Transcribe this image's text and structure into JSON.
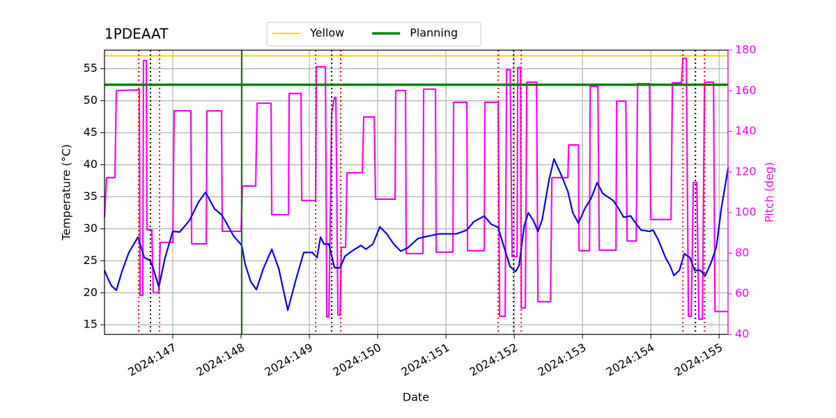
{
  "chart_data": {
    "type": "line",
    "title": "1PDEAAT",
    "xlabel": "Date",
    "ylabel": "Temperature (°C)",
    "y2label": "Pitch (deg)",
    "y2color": "#ff00ff",
    "grid": true,
    "legend": "upper center",
    "xlim": [
      146.0,
      155.13
    ],
    "xticks": [
      {
        "value": 147,
        "label": "2024:147"
      },
      {
        "value": 148,
        "label": "2024:148"
      },
      {
        "value": 149,
        "label": "2024:149"
      },
      {
        "value": 150,
        "label": "2024:150"
      },
      {
        "value": 151,
        "label": "2024:151"
      },
      {
        "value": 152,
        "label": "2024:152"
      },
      {
        "value": 153,
        "label": "2024:153"
      },
      {
        "value": 154,
        "label": "2024:154"
      },
      {
        "value": 155,
        "label": "2024:155"
      }
    ],
    "ylim": [
      13.5,
      57.9
    ],
    "yticks": [
      15,
      20,
      25,
      30,
      35,
      40,
      45,
      50,
      55
    ],
    "y2lim": [
      40,
      180
    ],
    "y2ticks": [
      40,
      60,
      80,
      100,
      120,
      140,
      160,
      180
    ],
    "hlines": [
      {
        "name": "Yellow",
        "color": "#ffd700",
        "width": 2,
        "value": 57.0
      },
      {
        "name": "Planning",
        "color": "#008000",
        "width": 3.5,
        "value": 52.5
      }
    ],
    "vlines": [
      {
        "color": "#008000",
        "dash": "none",
        "values": [
          148.01
        ]
      },
      {
        "color": "#ff0000",
        "dash": "2,4",
        "values": [
          146.5,
          146.806,
          149.092,
          149.459,
          151.765,
          152.102,
          154.469,
          154.786
        ]
      },
      {
        "color": "#000000",
        "dash": "2,4",
        "values": [
          146.673,
          149.327,
          151.99,
          154.653
        ]
      }
    ],
    "series": [
      {
        "color": "#ff00ff",
        "axis": "y2",
        "x": [
          146.0,
          146.031,
          146.153,
          146.173,
          146.51,
          146.52,
          146.561,
          146.571,
          146.612,
          146.622,
          146.694,
          146.714,
          146.796,
          146.816,
          147.0,
          147.02,
          147.265,
          147.276,
          147.49,
          147.5,
          147.714,
          147.724,
          148.0,
          148.02,
          148.214,
          148.235,
          148.439,
          148.449,
          148.694,
          148.704,
          148.878,
          148.888,
          149.092,
          149.102,
          149.235,
          149.255,
          149.286,
          149.327,
          149.367,
          149.388,
          149.418,
          149.449,
          149.469,
          149.531,
          149.551,
          149.776,
          149.796,
          149.949,
          149.969,
          150.255,
          150.265,
          150.408,
          150.418,
          150.663,
          150.673,
          150.847,
          150.857,
          151.102,
          151.112,
          151.306,
          151.316,
          151.561,
          151.571,
          151.765,
          151.786,
          151.867,
          151.888,
          151.939,
          151.969,
          152.041,
          152.051,
          152.092,
          152.102,
          152.163,
          152.184,
          152.327,
          152.347,
          152.531,
          152.551,
          152.786,
          152.796,
          152.939,
          152.949,
          153.102,
          153.112,
          153.224,
          153.245,
          153.49,
          153.5,
          153.633,
          153.653,
          153.786,
          153.806,
          153.98,
          154.0,
          154.296,
          154.316,
          154.449,
          154.469,
          154.52,
          154.551,
          154.592,
          154.622,
          154.673,
          154.704,
          154.755,
          154.786,
          154.918,
          154.939,
          155.133
        ],
        "values": [
          97.6,
          117.2,
          117.2,
          160.1,
          160.4,
          59.2,
          59.2,
          174.9,
          174.9,
          91.5,
          91.5,
          60.6,
          60.6,
          85.3,
          85.3,
          150.1,
          150.1,
          84.6,
          84.6,
          150.1,
          150.1,
          90.8,
          90.8,
          113.1,
          113.1,
          153.9,
          153.9,
          99.0,
          99.0,
          158.7,
          158.7,
          105.9,
          105.9,
          171.8,
          171.8,
          48.6,
          48.6,
          149.1,
          156.7,
          156.7,
          49.6,
          49.6,
          82.9,
          82.9,
          119.6,
          119.6,
          147.1,
          147.1,
          106.6,
          106.6,
          160.1,
          160.1,
          79.8,
          79.8,
          160.8,
          160.8,
          80.5,
          80.5,
          154.3,
          154.3,
          81.2,
          81.2,
          154.3,
          154.3,
          48.9,
          48.9,
          170.4,
          170.4,
          78.4,
          78.4,
          171.4,
          171.4,
          53.0,
          53.0,
          164.2,
          164.2,
          56.1,
          56.1,
          117.2,
          117.2,
          133.3,
          133.3,
          81.2,
          81.2,
          162.1,
          162.1,
          81.5,
          81.5,
          154.9,
          154.9,
          86.0,
          86.0,
          163.5,
          163.5,
          96.6,
          96.6,
          163.9,
          163.9,
          175.9,
          175.9,
          48.9,
          48.9,
          114.8,
          114.8,
          47.5,
          47.5,
          164.2,
          164.2,
          51.3,
          51.3
        ]
      },
      {
        "color": "#0000ee",
        "axis": "y",
        "x": [
          146.0,
          146.051,
          146.102,
          146.173,
          146.255,
          146.357,
          146.49,
          146.582,
          146.663,
          146.714,
          146.796,
          146.888,
          147.0,
          147.102,
          147.245,
          147.378,
          147.48,
          147.612,
          147.714,
          147.786,
          147.888,
          148.01,
          148.061,
          148.143,
          148.224,
          148.327,
          148.449,
          148.551,
          148.684,
          148.806,
          148.918,
          149.041,
          149.112,
          149.163,
          149.214,
          149.286,
          149.367,
          149.449,
          149.52,
          149.622,
          149.755,
          149.827,
          149.929,
          150.031,
          150.133,
          150.235,
          150.337,
          150.439,
          150.592,
          150.898,
          151.153,
          151.306,
          151.408,
          151.561,
          151.663,
          151.765,
          151.837,
          151.939,
          152.02,
          152.071,
          152.143,
          152.204,
          152.276,
          152.347,
          152.408,
          152.51,
          152.582,
          152.684,
          152.786,
          152.857,
          152.939,
          153.041,
          153.122,
          153.214,
          153.296,
          153.449,
          153.52,
          153.602,
          153.704,
          153.776,
          153.857,
          153.98,
          154.031,
          154.112,
          154.214,
          154.286,
          154.337,
          154.418,
          154.49,
          154.571,
          154.643,
          154.724,
          154.796,
          154.878,
          154.959,
          155.031,
          155.133
        ],
        "values": [
          23.5,
          22.2,
          21.1,
          20.4,
          23.3,
          26.3,
          28.7,
          25.5,
          25.1,
          23.8,
          20.9,
          25.5,
          29.6,
          29.5,
          31.3,
          34.2,
          35.7,
          33.1,
          32.2,
          30.9,
          28.9,
          27.4,
          24.4,
          21.7,
          20.5,
          23.8,
          26.8,
          23.8,
          17.3,
          22.2,
          26.3,
          26.3,
          25.5,
          28.7,
          27.6,
          27.6,
          23.9,
          23.9,
          25.7,
          26.5,
          27.4,
          26.8,
          27.6,
          30.3,
          29.2,
          27.6,
          26.5,
          27.0,
          28.5,
          29.2,
          29.2,
          29.8,
          31.1,
          32.0,
          30.7,
          30.2,
          27.6,
          24.1,
          23.3,
          24.3,
          30.3,
          32.5,
          31.4,
          29.6,
          31.4,
          37.7,
          40.9,
          38.5,
          35.8,
          32.5,
          30.9,
          33.3,
          34.7,
          37.2,
          35.5,
          34.4,
          33.3,
          31.8,
          32.0,
          30.9,
          29.8,
          29.6,
          29.8,
          28.2,
          25.5,
          24.1,
          22.7,
          23.5,
          26.1,
          25.5,
          23.5,
          23.5,
          22.7,
          24.6,
          27.1,
          33.1,
          39.6
        ]
      }
    ]
  }
}
